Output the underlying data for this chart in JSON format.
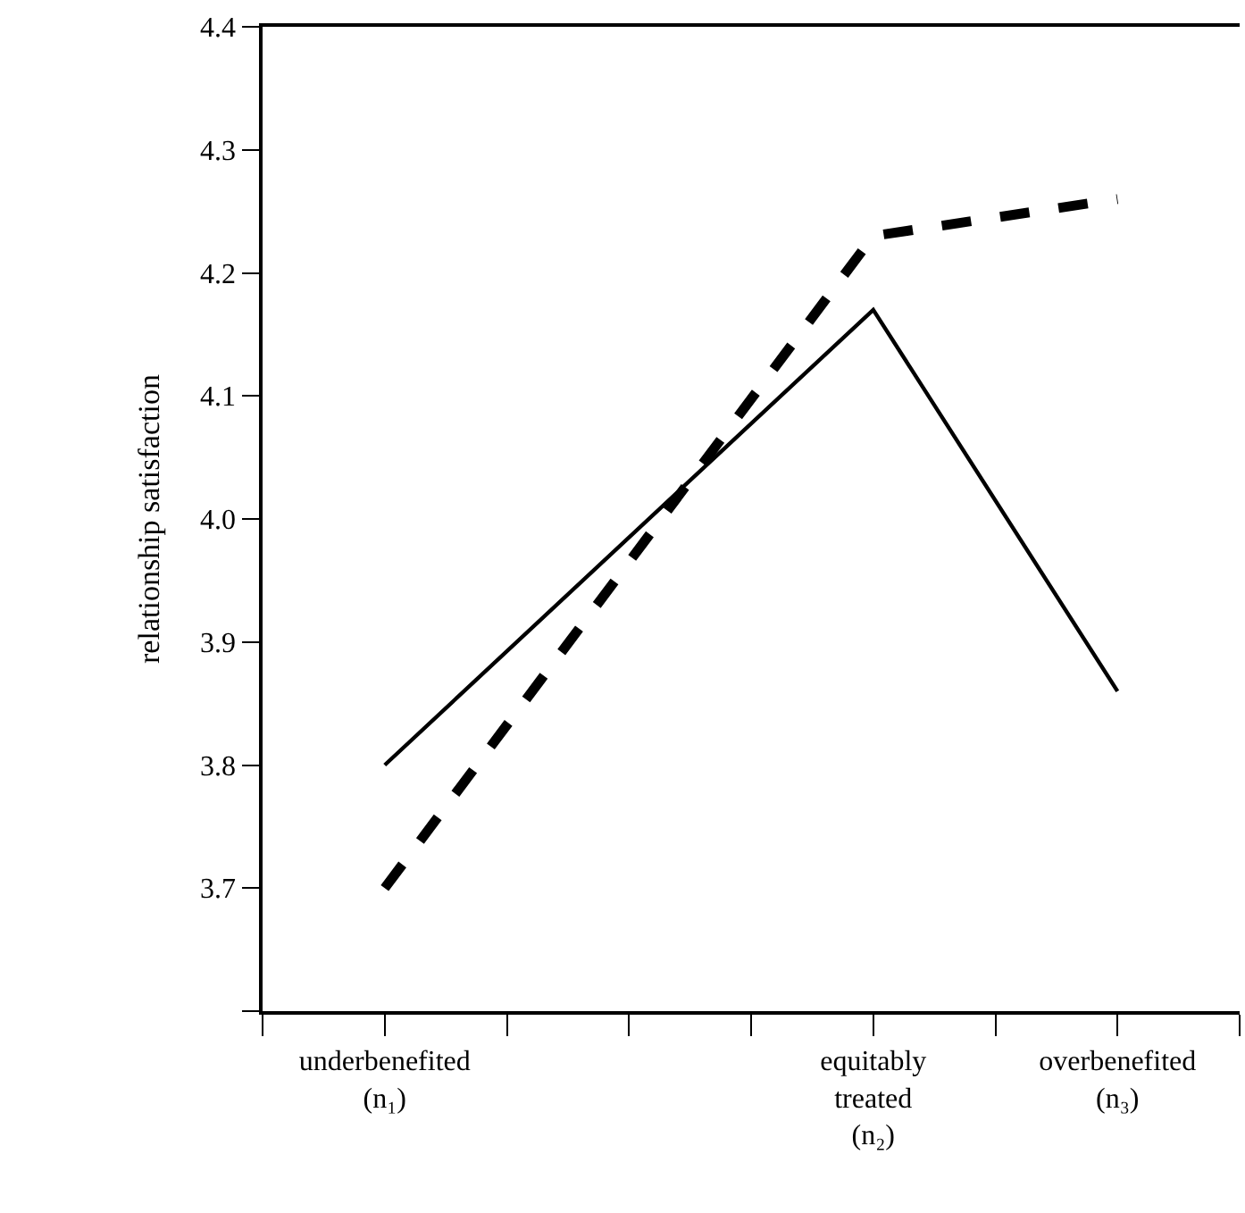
{
  "chart_data": {
    "type": "line",
    "ylabel": "relationship satisfaction",
    "categories": [
      null,
      "underbenefited\n(n₁)",
      null,
      null,
      null,
      "equitably\ntreated\n(n₂)",
      null,
      "overbenefited\n(n₃)",
      null
    ],
    "ylim": [
      3.6,
      4.4
    ],
    "yticks": [
      {
        "value": 3.6,
        "label": null
      },
      3.7,
      3.8,
      3.9,
      {
        "value": 4.0,
        "label": "4.0"
      },
      4.1,
      4.2,
      4.3,
      4.4
    ],
    "series": [
      {
        "color": "#000000",
        "line_style": "solid",
        "values": [
          null,
          3.8,
          null,
          null,
          null,
          4.17,
          null,
          3.86,
          null
        ]
      },
      {
        "color": "#000000",
        "line_style": "dashed",
        "values": [
          null,
          3.7,
          null,
          null,
          null,
          4.23,
          null,
          4.26,
          null
        ]
      }
    ],
    "marker": "none"
  }
}
